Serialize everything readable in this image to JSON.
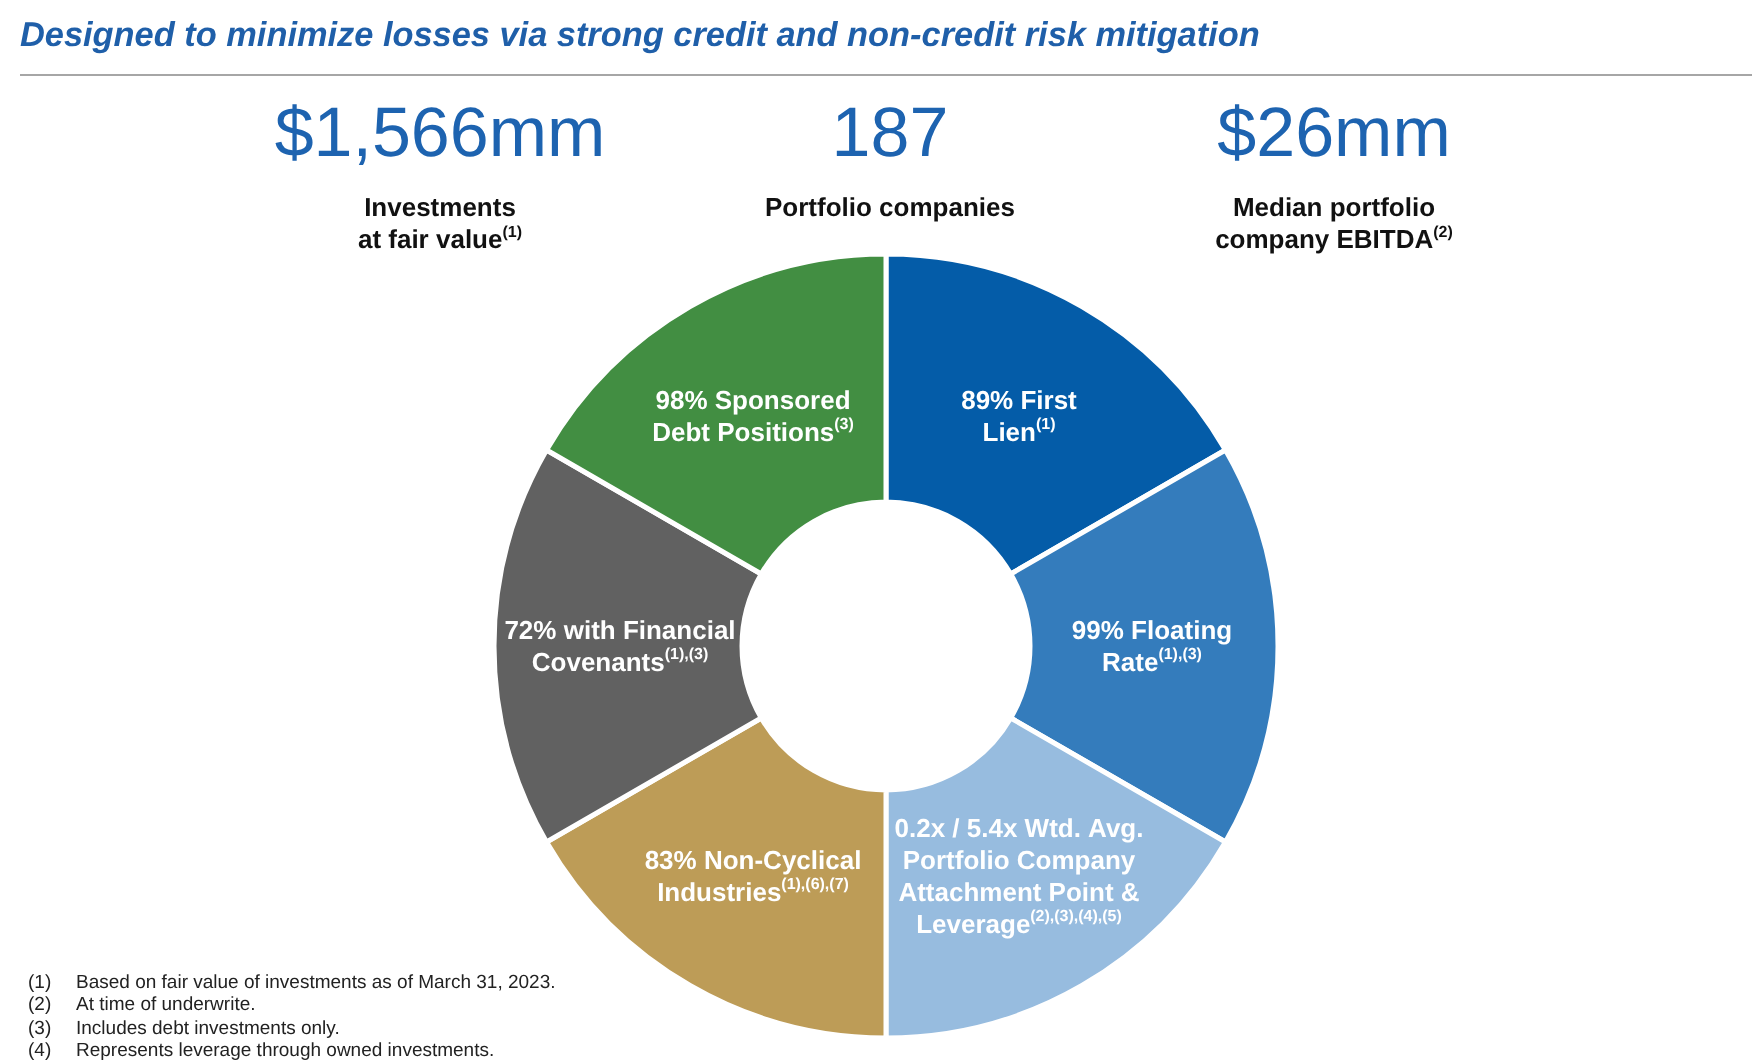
{
  "chart_data": {
    "type": "donut",
    "title": "Designed to minimize losses via strong credit and non-credit risk mitigation",
    "categories": [
      "89% First Lien$^{(1)}$",
      "99% Floating Rate$^{(1),(3)}$",
      "0.2x / 5.4x Wtd. Avg. Portfolio Company Attachment Point & Leverage$^{(2),(3),(4),(5)}$",
      "83% Non-Cyclical Industries$^{(1),(6),(7)}$",
      "72% with Financial Covenants$^{(1),(3)}$",
      "98% Sponsored Debt Positions$^{(3)}$"
    ],
    "values": [
      16.7,
      16.7,
      16.7,
      16.7,
      16.7,
      16.7
    ],
    "colors": [
      "#045ca8",
      "#347cbc",
      "#97bcdf",
      "#bd9c57",
      "#616161",
      "#428e42"
    ],
    "annotations": [
      "$1,566mm",
      "Investments at fair value$^{(1)}$",
      "187",
      "Portfolio companies",
      "$26mm",
      "Median portfolio company EBITDA$^{(2)}$",
      "(1) Based on fair value of investments as of March 31, 2023.",
      "(2) At time of underwrite.",
      "(3) Includes debt investments only.",
      "(4) Represents leverage through owned investments."
    ]
  }
}
